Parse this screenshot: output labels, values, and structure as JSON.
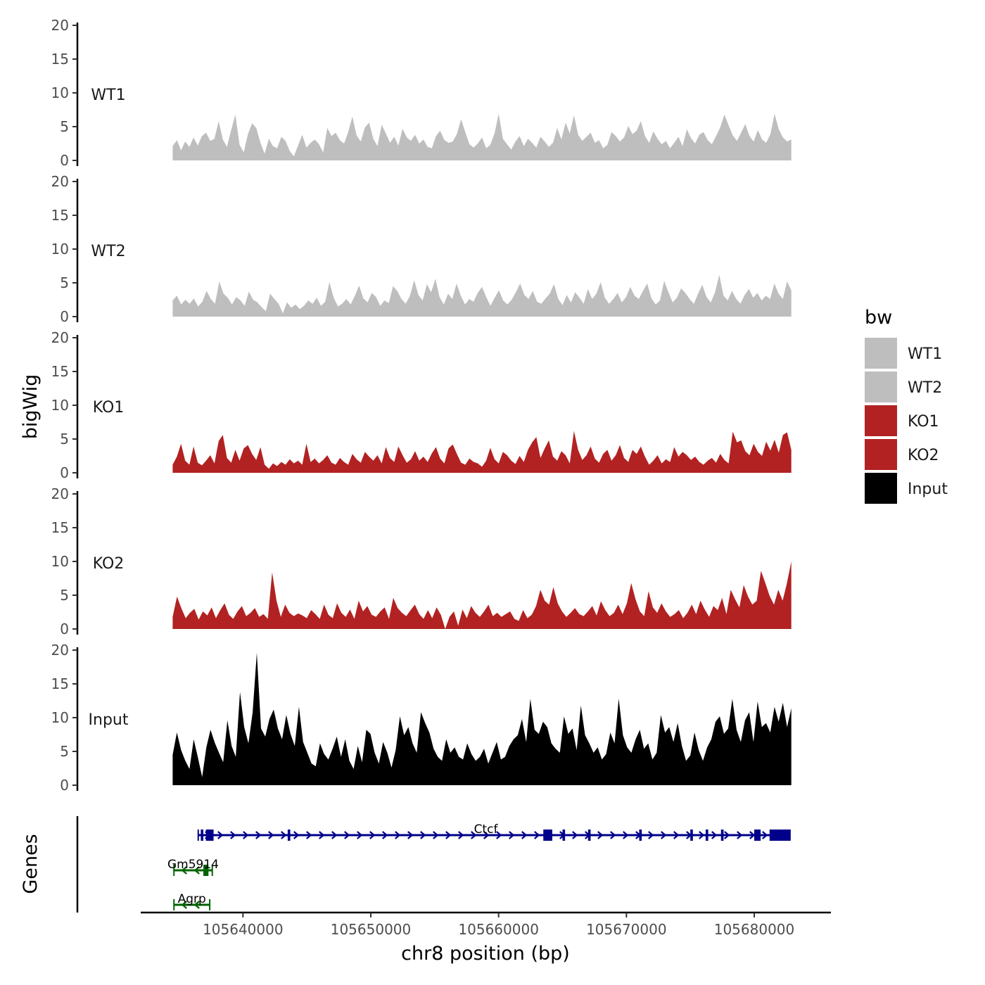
{
  "chart_data": {
    "type": "area",
    "title": "",
    "ylabel": "bigWig",
    "genes_label": "Genes",
    "xlabel": "chr8 position (bp)",
    "region": {
      "chrom": "chr8",
      "start": 105634500,
      "end": 105682900
    },
    "xlim": [
      105632000,
      105686000
    ],
    "ylim": [
      0,
      20
    ],
    "yticks": [
      0,
      5,
      10,
      15,
      20
    ],
    "xticks": [
      105640000,
      105650000,
      105660000,
      105670000,
      105680000
    ],
    "xtick_labels": [
      "105640000",
      "105650000",
      "105660000",
      "105670000",
      "105680000"
    ],
    "signal_seed_note": "per-track coverage profiles across chr8:105634500-105682900",
    "tracks": [
      {
        "name": "WT1",
        "label": "WT1",
        "color": "#bebebe",
        "values": [
          2.1,
          3.0,
          1.5,
          2.8,
          2.0,
          3.4,
          2.2,
          3.6,
          4.1,
          2.9,
          3.2,
          5.8,
          3.1,
          2.0,
          4.5,
          6.8,
          2.3,
          1.2,
          3.9,
          5.5,
          4.8,
          2.6,
          1.0,
          3.2,
          2.1,
          1.8,
          3.5,
          2.9,
          1.4,
          0.6,
          2.2,
          3.8,
          1.9,
          2.6,
          3.1,
          2.4,
          1.2,
          4.8,
          3.6,
          4.1,
          3.0,
          2.5,
          4.2,
          6.5,
          3.7,
          2.8,
          4.9,
          5.6,
          3.2,
          2.1,
          5.3,
          4.0,
          2.6,
          3.5,
          2.2,
          4.7,
          3.4,
          2.9,
          3.8,
          2.5,
          3.1,
          2.0,
          1.8,
          3.6,
          4.4,
          3.0,
          2.6,
          2.8,
          3.9,
          6.1,
          4.2,
          2.4,
          1.9,
          2.5,
          3.4,
          1.8,
          2.3,
          4.0,
          6.9,
          3.2,
          2.4,
          1.6,
          2.8,
          3.6,
          2.1,
          3.2,
          2.6,
          1.9,
          3.5,
          2.8,
          2.0,
          2.6,
          4.8,
          3.1,
          5.6,
          4.0,
          6.7,
          3.8,
          2.9,
          3.5,
          4.1,
          2.6,
          3.0,
          1.8,
          2.3,
          4.2,
          3.6,
          2.8,
          3.4,
          5.1,
          3.9,
          4.4,
          5.8,
          3.6,
          2.6,
          4.3,
          3.2,
          2.4,
          2.9,
          1.8,
          2.6,
          3.5,
          2.1,
          4.6,
          3.3,
          2.5,
          3.8,
          4.2,
          3.0,
          2.4,
          3.6,
          4.9,
          6.8,
          5.2,
          3.7,
          2.9,
          4.1,
          5.4,
          3.6,
          2.8,
          4.5,
          3.1,
          2.6,
          3.9,
          6.9,
          4.6,
          3.4,
          2.8,
          3.1
        ]
      },
      {
        "name": "WT2",
        "label": "WT2",
        "color": "#bebebe",
        "values": [
          2.4,
          3.1,
          1.8,
          2.5,
          1.9,
          2.7,
          1.5,
          2.2,
          3.8,
          2.6,
          1.9,
          5.2,
          3.4,
          2.8,
          1.8,
          2.9,
          2.4,
          1.6,
          3.7,
          2.5,
          2.1,
          1.4,
          0.8,
          3.4,
          2.6,
          1.9,
          0.5,
          2.1,
          1.3,
          1.8,
          1.1,
          1.6,
          2.4,
          1.9,
          2.8,
          1.6,
          2.2,
          5.1,
          2.8,
          1.5,
          1.9,
          2.6,
          1.8,
          3.1,
          4.6,
          2.7,
          2.1,
          3.5,
          2.9,
          1.6,
          2.4,
          2.0,
          4.5,
          3.8,
          2.6,
          1.9,
          3.1,
          5.4,
          3.2,
          2.4,
          4.8,
          3.6,
          5.6,
          2.9,
          1.8,
          3.4,
          2.6,
          4.9,
          3.1,
          1.8,
          2.6,
          2.2,
          3.5,
          4.4,
          2.9,
          1.6,
          2.8,
          3.9,
          2.4,
          1.8,
          2.5,
          3.6,
          4.9,
          3.2,
          2.6,
          3.8,
          2.2,
          1.9,
          2.7,
          3.4,
          4.8,
          2.6,
          1.7,
          3.2,
          2.1,
          3.6,
          2.8,
          1.9,
          4.1,
          2.6,
          3.4,
          5.1,
          2.8,
          1.9,
          2.6,
          3.5,
          2.1,
          2.9,
          4.4,
          3.1,
          2.6,
          3.8,
          4.9,
          2.7,
          1.8,
          2.4,
          5.3,
          3.6,
          2.1,
          2.8,
          4.2,
          3.5,
          2.6,
          1.9,
          3.4,
          4.7,
          2.9,
          2.1,
          3.6,
          6.2,
          3.1,
          2.4,
          3.8,
          2.6,
          1.9,
          3.2,
          4.1,
          2.8,
          3.5,
          2.4,
          3.1,
          2.6,
          4.9,
          3.4,
          2.6,
          5.2,
          3.9
        ]
      },
      {
        "name": "KO1",
        "label": "KO1",
        "color": "#b22222",
        "values": [
          1.2,
          2.4,
          4.3,
          1.8,
          1.2,
          3.9,
          1.5,
          1.1,
          1.8,
          2.6,
          1.4,
          4.7,
          5.6,
          2.2,
          1.5,
          3.4,
          1.8,
          3.6,
          4.1,
          2.8,
          1.9,
          3.8,
          1.2,
          0.6,
          1.4,
          1.0,
          1.6,
          1.2,
          2.0,
          1.4,
          1.8,
          1.2,
          4.3,
          1.6,
          2.1,
          1.4,
          1.9,
          2.6,
          1.5,
          1.2,
          2.2,
          1.6,
          1.2,
          2.8,
          2.0,
          1.5,
          3.1,
          2.4,
          1.8,
          2.6,
          1.4,
          3.8,
          2.2,
          1.6,
          3.9,
          2.6,
          1.5,
          2.0,
          3.2,
          1.8,
          2.4,
          1.6,
          2.9,
          3.8,
          2.1,
          1.4,
          3.6,
          4.2,
          2.8,
          1.5,
          1.2,
          2.1,
          1.6,
          1.4,
          0.9,
          1.8,
          3.7,
          2.0,
          1.4,
          3.1,
          2.6,
          1.8,
          1.3,
          2.5,
          1.6,
          3.4,
          4.5,
          5.3,
          2.2,
          3.6,
          4.8,
          2.4,
          1.8,
          3.2,
          2.6,
          1.4,
          6.2,
          3.4,
          1.9,
          2.6,
          3.9,
          2.1,
          1.5,
          2.8,
          3.4,
          1.8,
          2.6,
          4.1,
          2.2,
          1.6,
          3.4,
          2.8,
          3.9,
          2.4,
          1.2,
          1.8,
          2.6,
          1.4,
          2.0,
          1.6,
          3.8,
          2.4,
          3.1,
          2.6,
          1.9,
          2.4,
          1.6,
          1.2,
          1.8,
          2.2,
          1.5,
          2.8,
          1.9,
          1.4,
          6.1,
          4.5,
          4.8,
          3.2,
          2.6,
          4.3,
          3.1,
          2.5,
          4.6,
          3.3,
          4.9,
          3.0,
          5.6,
          6.0,
          3.4
        ]
      },
      {
        "name": "KO2",
        "label": "KO2",
        "color": "#b22222",
        "values": [
          1.8,
          4.8,
          3.1,
          1.6,
          2.4,
          3.0,
          1.4,
          2.6,
          2.0,
          3.2,
          1.6,
          2.8,
          3.8,
          2.1,
          1.5,
          2.6,
          3.4,
          1.9,
          2.4,
          3.1,
          1.8,
          2.2,
          1.5,
          8.4,
          4.2,
          1.8,
          3.6,
          2.4,
          1.9,
          2.3,
          2.0,
          1.6,
          2.8,
          2.2,
          1.5,
          3.6,
          2.1,
          1.6,
          3.8,
          2.4,
          1.8,
          2.9,
          1.5,
          4.2,
          2.6,
          3.4,
          2.1,
          1.8,
          2.6,
          3.2,
          1.5,
          4.6,
          3.1,
          2.4,
          1.9,
          2.8,
          3.6,
          2.2,
          1.5,
          2.8,
          1.6,
          3.2,
          2.1,
          0.0,
          1.8,
          2.6,
          0.5,
          2.9,
          1.6,
          3.4,
          2.4,
          1.8,
          2.6,
          3.6,
          1.9,
          2.4,
          1.8,
          2.2,
          2.6,
          1.5,
          1.2,
          2.8,
          1.6,
          2.1,
          3.4,
          5.8,
          4.2,
          3.6,
          6.2,
          3.8,
          2.6,
          1.8,
          2.4,
          3.1,
          2.2,
          1.9,
          2.6,
          3.4,
          2.0,
          4.1,
          2.8,
          1.9,
          2.4,
          3.6,
          2.2,
          3.8,
          6.8,
          4.4,
          2.6,
          1.9,
          5.6,
          3.2,
          2.4,
          3.8,
          2.6,
          1.8,
          2.2,
          2.8,
          1.6,
          2.4,
          3.6,
          2.2,
          4.2,
          2.9,
          1.8,
          3.4,
          2.8,
          4.6,
          2.2,
          5.8,
          4.4,
          3.2,
          6.5,
          4.8,
          3.6,
          4.2,
          8.6,
          6.8,
          4.9,
          3.6,
          5.8,
          4.2,
          6.8,
          10.0
        ]
      },
      {
        "name": "Input",
        "label": "Input",
        "color": "#000000",
        "values": [
          4.5,
          7.8,
          5.2,
          3.6,
          2.4,
          6.8,
          4.1,
          1.2,
          5.6,
          8.2,
          6.3,
          4.8,
          3.4,
          9.6,
          5.8,
          4.2,
          13.8,
          8.6,
          6.2,
          10.8,
          19.6,
          8.4,
          7.2,
          9.8,
          11.2,
          8.4,
          6.8,
          10.4,
          7.6,
          5.8,
          11.6,
          6.4,
          4.8,
          3.2,
          2.8,
          6.2,
          4.6,
          3.8,
          5.4,
          7.2,
          4.2,
          6.8,
          3.6,
          2.4,
          5.8,
          3.4,
          8.2,
          7.6,
          4.8,
          3.2,
          6.4,
          4.8,
          2.6,
          5.2,
          10.2,
          7.4,
          8.6,
          6.2,
          4.8,
          10.8,
          9.2,
          7.8,
          5.4,
          4.2,
          3.6,
          6.8,
          4.8,
          5.6,
          4.2,
          3.8,
          6.2,
          4.6,
          3.6,
          4.2,
          5.4,
          3.2,
          4.8,
          6.4,
          3.8,
          4.2,
          5.8,
          6.8,
          7.4,
          9.8,
          6.4,
          12.8,
          8.2,
          7.6,
          9.4,
          8.6,
          6.2,
          5.4,
          4.8,
          10.2,
          7.6,
          8.4,
          5.2,
          11.8,
          7.4,
          6.2,
          4.8,
          5.6,
          3.8,
          4.6,
          7.8,
          6.2,
          12.8,
          7.4,
          5.6,
          4.8,
          6.8,
          8.2,
          5.4,
          6.2,
          3.8,
          4.8,
          10.4,
          7.8,
          8.6,
          6.4,
          9.2,
          5.8,
          3.6,
          4.4,
          7.8,
          5.2,
          3.6,
          5.6,
          6.8,
          9.4,
          10.2,
          7.6,
          8.4,
          12.8,
          8.2,
          6.4,
          9.6,
          10.8,
          6.4,
          12.4,
          8.6,
          9.2,
          7.8,
          11.6,
          9.4,
          12.2,
          8.6,
          11.4
        ]
      }
    ],
    "legend": {
      "title": "bw",
      "position": "right",
      "entries": [
        {
          "label": "WT1",
          "color": "#bebebe"
        },
        {
          "label": "WT2",
          "color": "#bebebe"
        },
        {
          "label": "KO1",
          "color": "#b22222"
        },
        {
          "label": "KO2",
          "color": "#b22222"
        },
        {
          "label": "Input",
          "color": "#000000"
        }
      ]
    },
    "genes": [
      {
        "name": "Ctcf",
        "strand": "+",
        "start": 105636500,
        "end": 105682800,
        "color": "#00008b",
        "exons": [
          [
            105636700,
            105636900
          ],
          [
            105637100,
            105637700
          ],
          [
            105643500,
            105643700
          ],
          [
            105663500,
            105664200
          ],
          [
            105665000,
            105665200
          ],
          [
            105667000,
            105667200
          ],
          [
            105671000,
            105671200
          ],
          [
            105675000,
            105675200
          ],
          [
            105676200,
            105676400
          ],
          [
            105677400,
            105677600
          ],
          [
            105680000,
            105680500
          ],
          [
            105681200,
            105682800
          ]
        ]
      },
      {
        "name": "Gm5914",
        "strand": "-",
        "start": 105634600,
        "end": 105637600,
        "color": "#006400",
        "exons": [
          [
            105636900,
            105637300
          ]
        ]
      },
      {
        "name": "Agrp",
        "strand": "-",
        "start": 105634600,
        "end": 105637400,
        "color": "#006400",
        "exons": []
      }
    ]
  }
}
